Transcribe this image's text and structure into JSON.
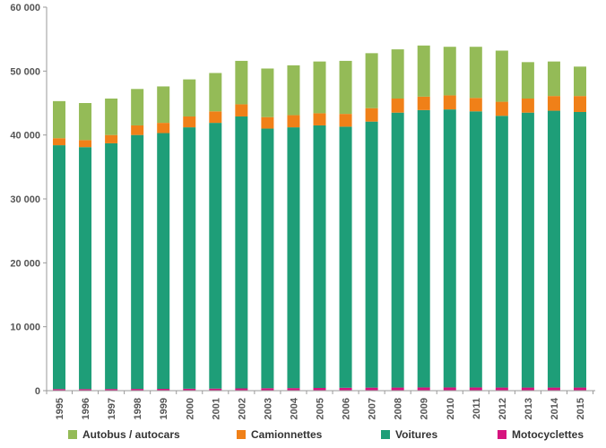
{
  "chart_data": {
    "type": "bar",
    "stacked": true,
    "title": "",
    "xlabel": "",
    "ylabel": "",
    "ylim": [
      0,
      60000
    ],
    "yticks": [
      0,
      10000,
      20000,
      30000,
      40000,
      50000,
      60000
    ],
    "ytick_labels": [
      "0",
      "10 000",
      "20 000",
      "30 000",
      "40 000",
      "50 000",
      "60 000"
    ],
    "grid": false,
    "legend_position": "bottom",
    "categories": [
      "1995",
      "1996",
      "1997",
      "1998",
      "1999",
      "2000",
      "2001",
      "2002",
      "2003",
      "2004",
      "2005",
      "2006",
      "2007",
      "2008",
      "2009",
      "2010",
      "2011",
      "2012",
      "2013",
      "2014",
      "2015"
    ],
    "series": [
      {
        "name": "Motocyclettes",
        "color": "#d6147e",
        "values": [
          250,
          250,
          260,
          270,
          280,
          300,
          320,
          350,
          380,
          400,
          420,
          450,
          470,
          480,
          500,
          500,
          500,
          480,
          480,
          480,
          480
        ]
      },
      {
        "name": "Voitures",
        "color": "#1e9e78",
        "values": [
          38150,
          37850,
          38440,
          39730,
          40020,
          40900,
          41580,
          42550,
          40620,
          40800,
          41080,
          40850,
          41630,
          43020,
          43400,
          43500,
          43200,
          42520,
          43020,
          43320,
          43120
        ]
      },
      {
        "name": "Camionnettes",
        "color": "#f08018",
        "values": [
          1100,
          1100,
          1300,
          1500,
          1600,
          1700,
          1800,
          1900,
          1800,
          1900,
          1900,
          2000,
          2100,
          2200,
          2100,
          2200,
          2100,
          2200,
          2200,
          2300,
          2500
        ]
      },
      {
        "name": "Autobus / autocars",
        "color": "#94bb57",
        "values": [
          5800,
          5800,
          5700,
          5700,
          5700,
          5800,
          6000,
          6800,
          7600,
          7800,
          8100,
          8300,
          8600,
          7700,
          8000,
          7600,
          8000,
          8000,
          5700,
          5400,
          4600
        ]
      }
    ],
    "legend": [
      {
        "name": "Autobus / autocars",
        "color": "#94bb57"
      },
      {
        "name": "Camionnettes",
        "color": "#f08018"
      },
      {
        "name": "Voitures",
        "color": "#1e9e78"
      },
      {
        "name": "Motocyclettes",
        "color": "#d6147e"
      }
    ]
  }
}
